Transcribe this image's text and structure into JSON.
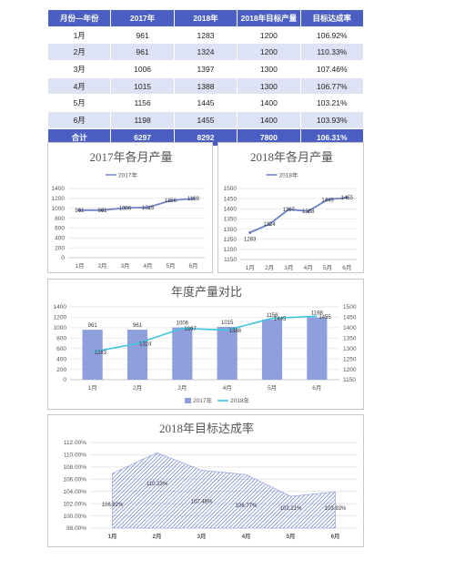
{
  "table": {
    "headers": [
      "月份—年份",
      "2017年",
      "2018年",
      "2018年目标产量",
      "目标达成率"
    ],
    "rows": [
      [
        "1月",
        "961",
        "1283",
        "1200",
        "106.92%"
      ],
      [
        "2月",
        "961",
        "1324",
        "1200",
        "110.33%"
      ],
      [
        "3月",
        "1006",
        "1397",
        "1300",
        "107.46%"
      ],
      [
        "4月",
        "1015",
        "1388",
        "1300",
        "106.77%"
      ],
      [
        "5月",
        "1156",
        "1445",
        "1400",
        "103.21%"
      ],
      [
        "6月",
        "1198",
        "1455",
        "1400",
        "103.93%"
      ]
    ],
    "total": [
      "合计",
      "6297",
      "8292",
      "7800",
      "106.31%"
    ]
  },
  "colors": {
    "header_bg": "#4a5fc1",
    "alt_row": "#dde2f4",
    "line_2017": "#7084c9",
    "line_2018": "#6b80c6",
    "bar_2017": "#8f9fdb",
    "line_2018_combo": "#3ec5e0",
    "area_rate": "#4a64c8"
  },
  "chart_data": [
    {
      "type": "line",
      "title": "2017年各月产量",
      "categories": [
        "1月",
        "2月",
        "3月",
        "4月",
        "5月",
        "6月"
      ],
      "series": [
        {
          "name": "2017年",
          "values": [
            961,
            961,
            1006,
            1015,
            1156,
            1198
          ]
        }
      ],
      "ylim": [
        0,
        1400
      ],
      "yticks": [
        0,
        200,
        400,
        600,
        800,
        1000,
        1200,
        1400
      ],
      "grid": true,
      "legend": "top"
    },
    {
      "type": "line",
      "title": "2018年各月产量",
      "categories": [
        "1月",
        "2月",
        "3月",
        "4月",
        "5月",
        "6月"
      ],
      "series": [
        {
          "name": "2018年",
          "values": [
            1283,
            1324,
            1397,
            1388,
            1445,
            1455
          ]
        }
      ],
      "ylim": [
        1150,
        1500
      ],
      "yticks": [
        1150,
        1200,
        1250,
        1300,
        1350,
        1400,
        1450,
        1500
      ],
      "grid": true,
      "legend": "top"
    },
    {
      "type": "bar",
      "title": "年度产量对比",
      "categories": [
        "1月",
        "2月",
        "3月",
        "4月",
        "5月",
        "6月"
      ],
      "series": [
        {
          "name": "2017年",
          "type": "bar",
          "axis": "left",
          "values": [
            961,
            961,
            1006,
            1015,
            1156,
            1198
          ]
        },
        {
          "name": "2018年",
          "type": "line",
          "axis": "right",
          "values": [
            1283,
            1324,
            1397,
            1388,
            1445,
            1455
          ]
        }
      ],
      "ylim": [
        0,
        1400
      ],
      "yticks": [
        0,
        200,
        400,
        600,
        800,
        1000,
        1200,
        1400
      ],
      "ylim_right": [
        1150,
        1500
      ],
      "yticks_right": [
        1150,
        1200,
        1250,
        1300,
        1350,
        1400,
        1450,
        1500
      ],
      "grid": true,
      "legend": "bottom"
    },
    {
      "type": "area",
      "title": "2018年目标达成率",
      "categories": [
        "1月",
        "2月",
        "3月",
        "4月",
        "5月",
        "6月"
      ],
      "series": [
        {
          "values": [
            106.92,
            110.33,
            107.46,
            106.77,
            103.21,
            103.93
          ],
          "labels": [
            "106.92%",
            "110.33%",
            "107.46%",
            "106.77%",
            "103.21%",
            "103.93%"
          ]
        }
      ],
      "ylim": [
        98,
        112
      ],
      "yticks": [
        "98.00%",
        "100.00%",
        "102.00%",
        "104.00%",
        "106.00%",
        "108.00%",
        "110.00%",
        "112.00%"
      ],
      "grid": true
    }
  ]
}
